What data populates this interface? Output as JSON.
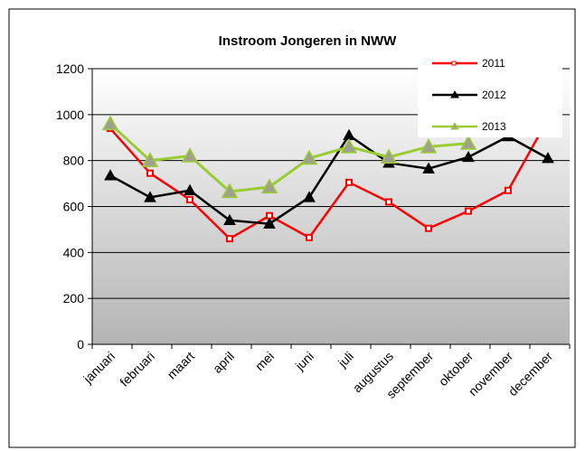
{
  "chart_data": {
    "type": "line",
    "title": "Instroom Jongeren in NWW",
    "categories": [
      "januari",
      "februari",
      "maart",
      "april",
      "mei",
      "juni",
      "juli",
      "augustus",
      "september",
      "oktober",
      "november",
      "december"
    ],
    "series": [
      {
        "name": "2011",
        "color": "#ff0000",
        "values": [
          940,
          745,
          630,
          460,
          560,
          465,
          705,
          620,
          505,
          580,
          670,
          980
        ]
      },
      {
        "name": "2012",
        "color": "#000000",
        "values": [
          735,
          640,
          670,
          540,
          525,
          640,
          910,
          790,
          765,
          815,
          905,
          810
        ]
      },
      {
        "name": "2013",
        "color": "#99cc33",
        "values": [
          960,
          800,
          820,
          665,
          685,
          810,
          860,
          815,
          860,
          875,
          null,
          null
        ]
      }
    ],
    "ylim": [
      0,
      1200
    ],
    "yticks": [
      0,
      200,
      400,
      600,
      800,
      1000,
      1200
    ],
    "grid": true
  }
}
